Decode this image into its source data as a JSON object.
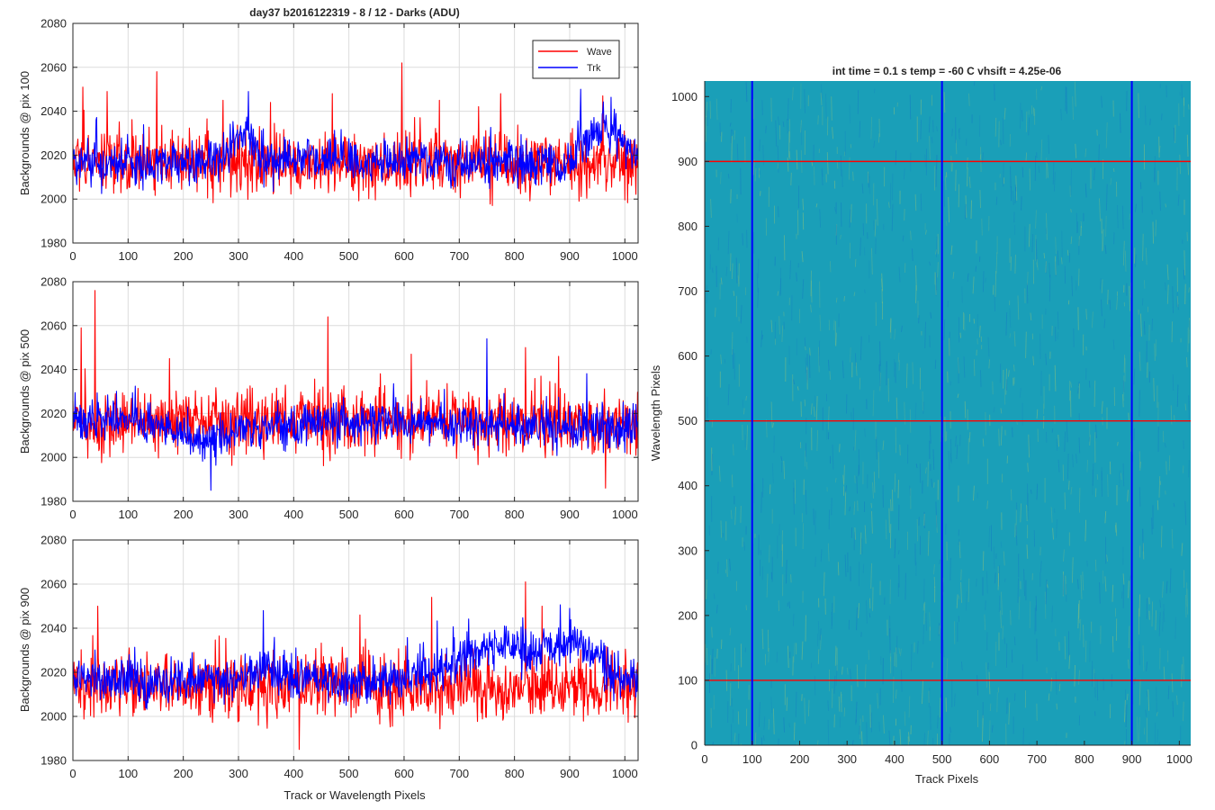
{
  "colors": {
    "wave": "#ff0000",
    "trk": "#0000ff",
    "grid": "#dcdcdc",
    "axis": "#262626",
    "heat_base": "#1a9fb8",
    "heat_streak": "#8ec27a",
    "heat_dark": "#1479c4"
  },
  "chart_data": [
    {
      "type": "line",
      "title": "day37 b2016122319 - 8 / 12 - Darks (ADU)",
      "xlabel": "",
      "ylabel": "Backgrounds @ pix 100",
      "xlim": [
        0,
        1024
      ],
      "ylim": [
        1980,
        2080
      ],
      "xticks": [
        0,
        100,
        200,
        300,
        400,
        500,
        600,
        700,
        800,
        900,
        1000
      ],
      "yticks": [
        1980,
        2000,
        2020,
        2040,
        2060,
        2080
      ],
      "grid": true,
      "legend": {
        "position": "top-right",
        "entries": [
          "Wave",
          "Trk"
        ]
      },
      "series": [
        {
          "name": "Wave",
          "color": "#ff0000",
          "mean": 2016,
          "noise_sd": 7,
          "spikes": [
            [
              18,
              2051
            ],
            [
              62,
              2049
            ],
            [
              152,
              2058
            ],
            [
              272,
              2045
            ],
            [
              358,
              2044
            ],
            [
              470,
              2048
            ],
            [
              596,
              2062
            ],
            [
              664,
              2045
            ],
            [
              775,
              2048
            ],
            [
              960,
              2047
            ]
          ],
          "bumps": []
        },
        {
          "name": "Trk",
          "color": "#0000ff",
          "mean": 2016,
          "noise_sd": 5,
          "spikes": [
            [
              318,
              2049
            ],
            [
              920,
              2050
            ]
          ],
          "bumps": [
            [
              310,
              22,
              14
            ],
            [
              965,
              30,
              16
            ],
            [
              430,
              40,
              3
            ]
          ]
        }
      ]
    },
    {
      "type": "line",
      "title": "",
      "xlabel": "",
      "ylabel": "Backgrounds @ pix 500",
      "xlim": [
        0,
        1024
      ],
      "ylim": [
        1980,
        2080
      ],
      "xticks": [
        0,
        100,
        200,
        300,
        400,
        500,
        600,
        700,
        800,
        900,
        1000
      ],
      "yticks": [
        1980,
        2000,
        2020,
        2040,
        2060,
        2080
      ],
      "grid": true,
      "series": [
        {
          "name": "Wave",
          "color": "#ff0000",
          "mean": 2016,
          "noise_sd": 7,
          "spikes": [
            [
              40,
              2076
            ],
            [
              15,
              2059
            ],
            [
              175,
              2045
            ],
            [
              462,
              2064
            ],
            [
              613,
              2047
            ],
            [
              820,
              2050
            ],
            [
              880,
              2046
            ],
            [
              965,
              1986
            ]
          ],
          "bumps": []
        },
        {
          "name": "Trk",
          "color": "#0000ff",
          "mean": 2014,
          "noise_sd": 5,
          "spikes": [
            [
              250,
              1985
            ],
            [
              750,
              2054
            ]
          ],
          "bumps": [
            [
              70,
              50,
              4
            ],
            [
              250,
              40,
              -6
            ],
            [
              500,
              80,
              2
            ]
          ]
        }
      ]
    },
    {
      "type": "line",
      "title": "",
      "xlabel": "Track or Wavelength Pixels",
      "ylabel": "Backgrounds @ pix 900",
      "xlim": [
        0,
        1024
      ],
      "ylim": [
        1980,
        2080
      ],
      "xticks": [
        0,
        100,
        200,
        300,
        400,
        500,
        600,
        700,
        800,
        900,
        1000
      ],
      "yticks": [
        1980,
        2000,
        2020,
        2040,
        2060,
        2080
      ],
      "grid": true,
      "series": [
        {
          "name": "Wave",
          "color": "#ff0000",
          "mean": 2013,
          "noise_sd": 7,
          "spikes": [
            [
              45,
              2050
            ],
            [
              520,
              2046
            ],
            [
              650,
              2054
            ],
            [
              820,
              2061
            ],
            [
              850,
              2050
            ],
            [
              410,
              1985
            ]
          ],
          "bumps": []
        },
        {
          "name": "Trk",
          "color": "#0000ff",
          "mean": 2016,
          "noise_sd": 5,
          "spikes": [
            [
              345,
              2048
            ],
            [
              900,
              2049
            ]
          ],
          "bumps": [
            [
              770,
              80,
              15
            ],
            [
              910,
              40,
              14
            ],
            [
              350,
              40,
              4
            ]
          ]
        }
      ]
    },
    {
      "type": "heatmap",
      "title": "int time = 0.1 s   temp = -60 C   vhsift = 4.25e-06",
      "xlabel": "Track Pixels",
      "ylabel": "Wavelength Pixels",
      "xlim": [
        0,
        1024
      ],
      "ylim": [
        0,
        1024
      ],
      "xticks": [
        0,
        100,
        200,
        300,
        400,
        500,
        600,
        700,
        800,
        900,
        1000
      ],
      "yticks": [
        0,
        100,
        200,
        300,
        400,
        500,
        600,
        700,
        800,
        900,
        1000
      ],
      "markers": {
        "vertical_lines": {
          "values": [
            100,
            500,
            900
          ],
          "color": "#0000ff"
        },
        "horizontal_lines": {
          "values": [
            100,
            500,
            900
          ],
          "color": "#ff0000"
        }
      }
    }
  ]
}
